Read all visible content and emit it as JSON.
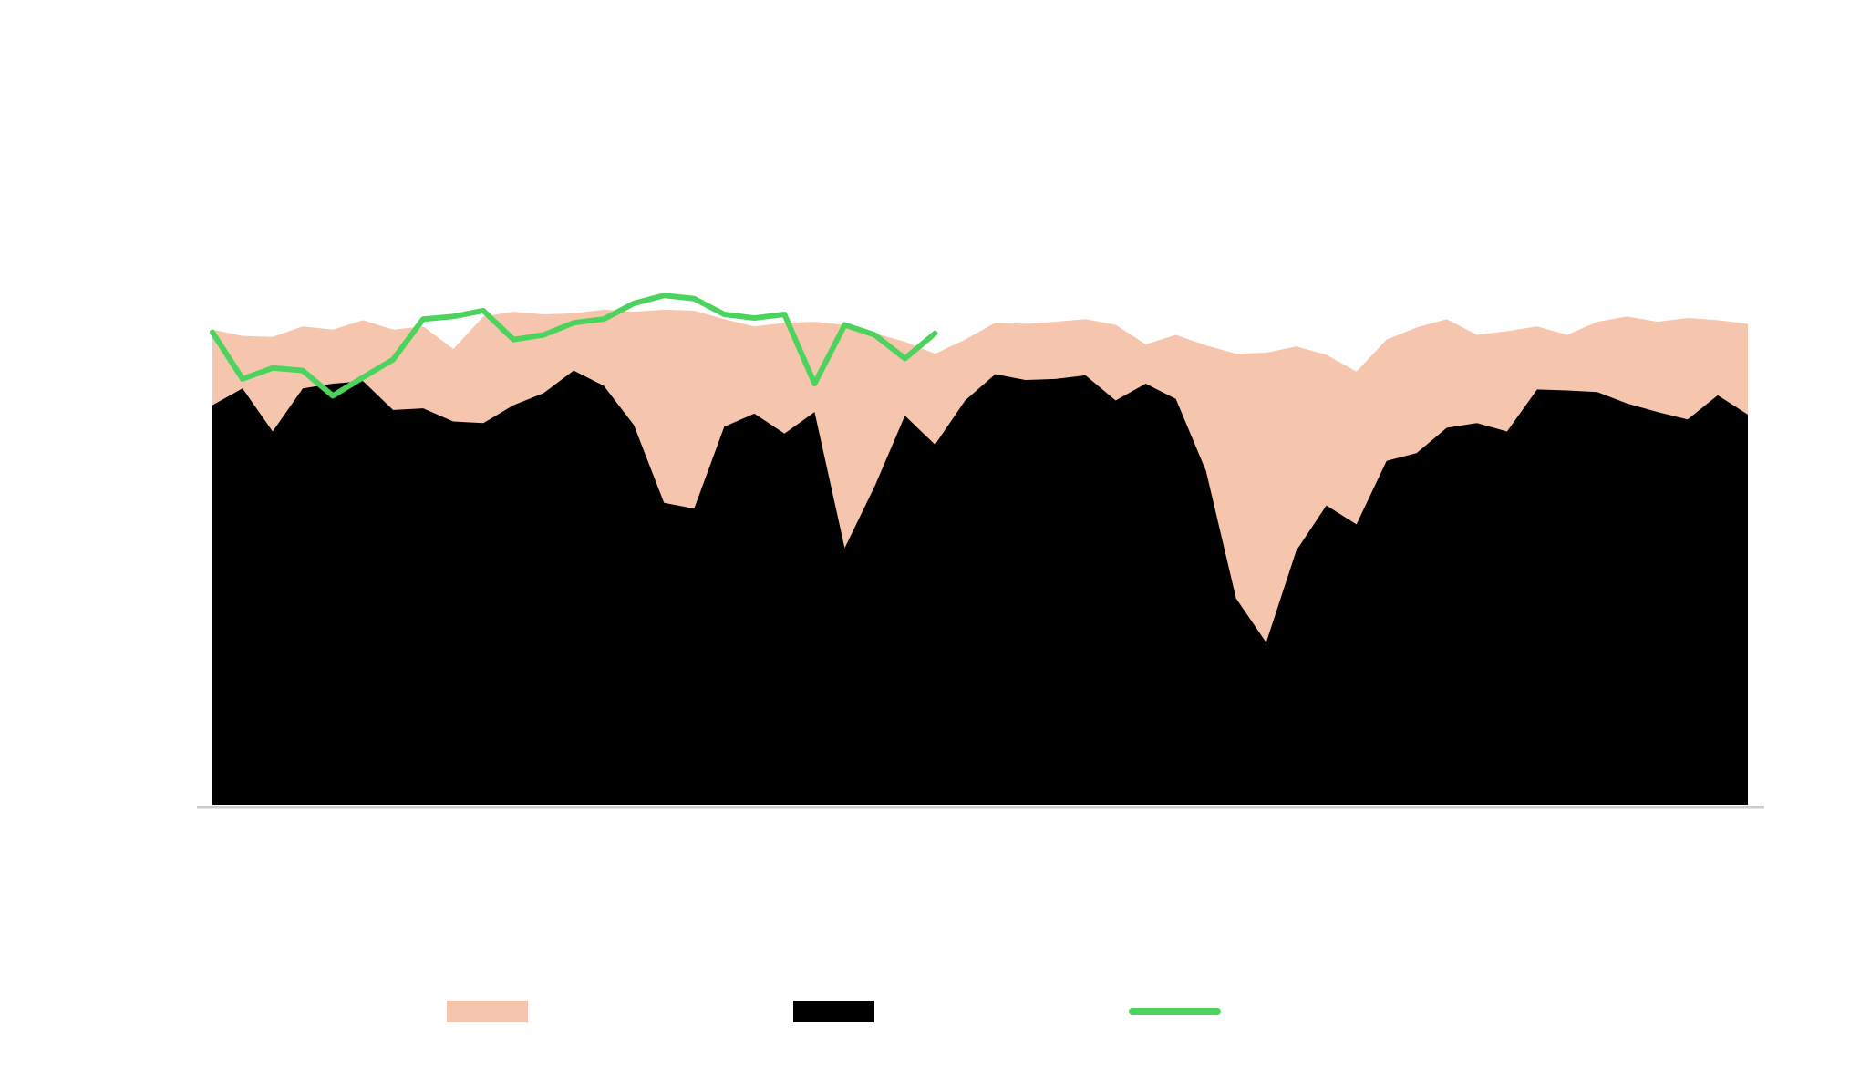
{
  "chart_data": {
    "type": "area",
    "categories": [
      null,
      null,
      null,
      null,
      null,
      null,
      null,
      null,
      null,
      null,
      null,
      null,
      null,
      null,
      null,
      null,
      null,
      null,
      null,
      null,
      null,
      null,
      null,
      null,
      null,
      null,
      null,
      null,
      null,
      null,
      null,
      null,
      null,
      null,
      null,
      null,
      null,
      null,
      null,
      null,
      null,
      null,
      null,
      null,
      null,
      null,
      null,
      null,
      null,
      null,
      null,
      null
    ],
    "ylim": [
      0,
      100
    ],
    "series": [
      {
        "type": "area",
        "color": "#f5c6ad",
        "values": [
          90.5,
          89.3,
          89.1,
          91.1,
          90.5,
          92.3,
          90.5,
          91.1,
          86.8,
          93.0,
          93.9,
          93.4,
          93.6,
          94.3,
          93.9,
          94.3,
          94.1,
          92.5,
          91.1,
          91.8,
          92.0,
          91.4,
          89.8,
          88.2,
          85.9,
          88.6,
          91.8,
          91.6,
          92.0,
          92.5,
          91.4,
          87.7,
          89.5,
          87.5,
          85.9,
          86.1,
          87.3,
          85.7,
          82.5,
          88.6,
          90.9,
          92.5,
          89.5,
          90.2,
          91.1,
          89.5,
          92.0,
          93.0,
          92.0,
          92.7,
          92.3,
          91.6
        ]
      },
      {
        "type": "area",
        "color": "#000000",
        "values": [
          76.1,
          79.3,
          71.1,
          79.3,
          80.2,
          80.7,
          75.2,
          75.5,
          73.0,
          72.7,
          76.1,
          78.4,
          82.7,
          79.8,
          72.3,
          57.5,
          56.4,
          72.0,
          74.5,
          70.7,
          74.8,
          48.9,
          60.7,
          74.1,
          68.6,
          77.0,
          82.0,
          80.9,
          81.1,
          81.8,
          77.0,
          80.2,
          77.3,
          63.6,
          39.3,
          30.9,
          48.4,
          57.0,
          53.4,
          65.5,
          67.0,
          71.8,
          72.7,
          71.1,
          79.1,
          78.9,
          78.6,
          76.4,
          74.8,
          73.4,
          78.0,
          74.3
        ]
      },
      {
        "type": "line",
        "color": "#4cd35e",
        "values": [
          90.0,
          81.1,
          83.2,
          82.7,
          77.9,
          81.4,
          84.8,
          92.5,
          93.0,
          94.1,
          88.6,
          89.5,
          91.8,
          92.5,
          95.5,
          97.0,
          96.4,
          93.4,
          92.7,
          93.4,
          80.2,
          91.4,
          89.5,
          85.0,
          89.8,
          null,
          null,
          null,
          null,
          null,
          null,
          null,
          null,
          null,
          null,
          null,
          null,
          null,
          null,
          null,
          null,
          null,
          null,
          null,
          null,
          null,
          null,
          null,
          null,
          null,
          null,
          null
        ]
      }
    ]
  }
}
